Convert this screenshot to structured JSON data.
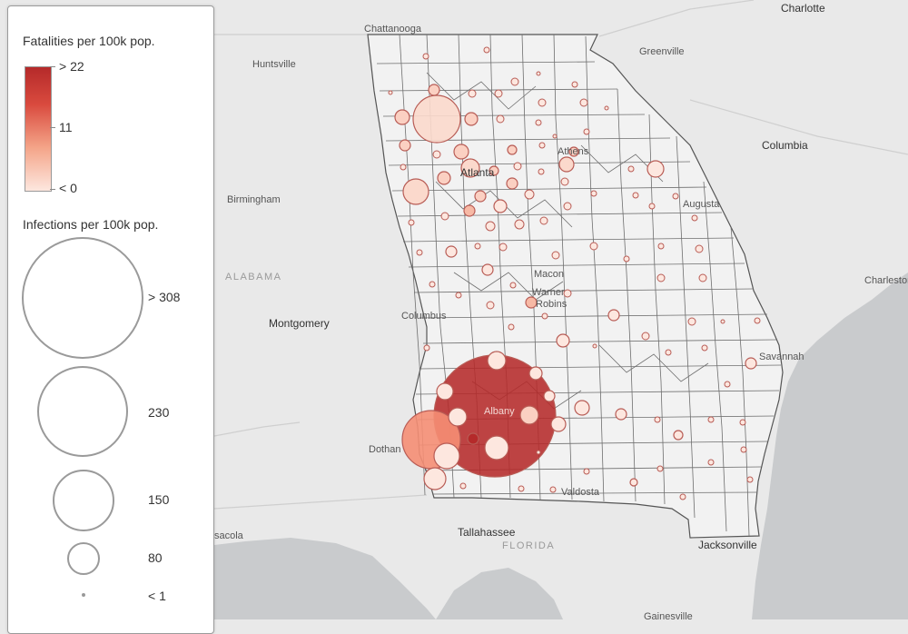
{
  "legend": {
    "fatalities_title": "Fatalities per 100k pop.",
    "fatalities_ramp": [
      "> 22",
      "11",
      "< 0"
    ],
    "ramp_colors": [
      "#b52a2a",
      "#f4a488",
      "#fde7df"
    ],
    "infections_title": "Infections per 100k pop.",
    "infections_sizes": [
      "> 308",
      "230",
      "150",
      "80",
      "< 1"
    ]
  },
  "map": {
    "cities": {
      "chattanooga": "Chattanooga",
      "charlotte": "Charlotte",
      "huntsville": "Huntsville",
      "greenville": "Greenville",
      "athens": "Athens",
      "atlanta": "Atlanta",
      "columbia": "Columbia",
      "birmingham": "Birmingham",
      "augusta": "Augusta",
      "charleston": "Charleston",
      "macon": "Macon",
      "warner_robins_1": "Warner",
      "warner_robins_2": "Robins",
      "montgomery": "Montgomery",
      "columbus": "Columbus",
      "savannah": "Savannah",
      "albany": "Albany",
      "dothan": "Dothan",
      "valdosta": "Valdosta",
      "pensacola": "sacola",
      "tallahassee": "Tallahassee",
      "jacksonville": "Jacksonville",
      "gainesville": "Gainesville"
    },
    "states": {
      "alabama": "ALABAMA",
      "florida": "FLORIDA"
    },
    "colors": {
      "land": "#e9e9e9",
      "water": "#c9cbcd",
      "georgia": "#f2f2f2",
      "border": "#6e6e6e"
    }
  }
}
